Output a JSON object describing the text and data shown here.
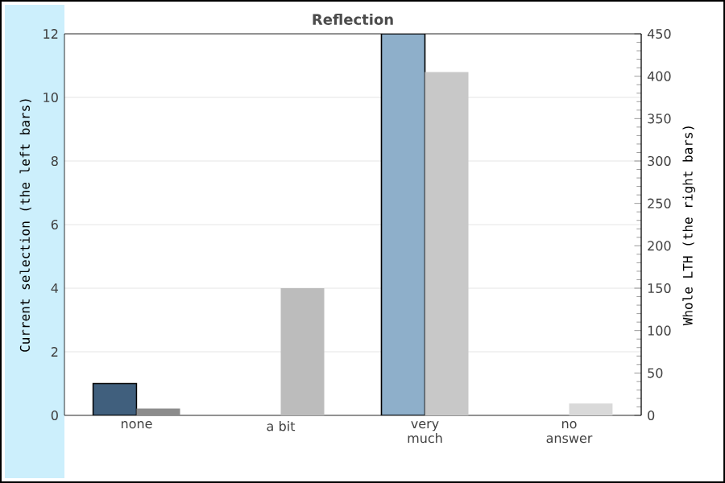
{
  "chart_data": {
    "type": "bar",
    "title": "Reflection",
    "categories": [
      "none",
      "a bit",
      "very much",
      "no answer"
    ],
    "series": [
      {
        "colors": [
          "#405f7d",
          "#405f7d",
          "#8eafca",
          "#405f7d"
        ],
        "values": [
          1,
          0,
          12,
          0
        ]
      },
      {
        "colors": [
          "#8c8c8c",
          "#bcbcbc",
          "#c8c8c8",
          "#d9d9d9"
        ],
        "values": [
          8,
          150,
          405,
          14
        ],
        "axis": "y2"
      }
    ],
    "ylabel": "Current selection (the left bars)",
    "y2label": "Whole LTH (the right bars)",
    "ylim": [
      0,
      12
    ],
    "yticks": [
      0,
      2,
      4,
      6,
      8,
      10,
      12
    ],
    "y2lim": [
      0,
      450
    ],
    "y2ticks": [
      0,
      50,
      100,
      150,
      200,
      250,
      300,
      350,
      400,
      450
    ],
    "grid": "y"
  }
}
